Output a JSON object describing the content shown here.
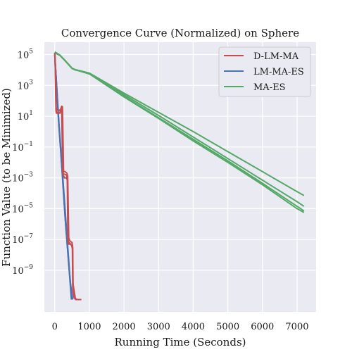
{
  "chart_data": {
    "type": "line",
    "title": "Convergence Curve (Normalized) on Sphere",
    "xlabel": "Running Time (Seconds)",
    "ylabel": "Function Value (to be Minimized)",
    "xlim": [
      -300,
      7550
    ],
    "ylim_log10": [
      -11.7,
      5.8
    ],
    "yscale": "log",
    "x_ticks": [
      0,
      1000,
      2000,
      3000,
      4000,
      5000,
      6000,
      7000
    ],
    "x_tick_labels": [
      "0",
      "1000",
      "2000",
      "3000",
      "4000",
      "5000",
      "6000",
      "7000"
    ],
    "y_ticks_log10": [
      5,
      3,
      1,
      -1,
      -3,
      -5,
      -7,
      -9
    ],
    "y_tick_labels": [
      "5",
      "3",
      "1",
      "−1",
      "−3",
      "−5",
      "−7",
      "−9"
    ],
    "grid": true,
    "legend_position": "top-right",
    "colors": {
      "plot_bg": "#eaeaf2",
      "grid": "#ffffff",
      "D-LM-MA": "#c44e52",
      "LM-MA-ES": "#4c72b0",
      "MA-ES": "#55a868"
    },
    "series": [
      {
        "name": "D-LM-MA",
        "runs": [
          [
            [
              0,
              5.1
            ],
            [
              10,
              4.9
            ],
            [
              35,
              1.3
            ],
            [
              60,
              1.25
            ],
            [
              120,
              1.25
            ],
            [
              150,
              1.2
            ],
            [
              175,
              1.5
            ],
            [
              200,
              1.5
            ],
            [
              230,
              -2.7
            ],
            [
              260,
              -2.75
            ],
            [
              330,
              -2.8
            ],
            [
              360,
              -3.0
            ],
            [
              380,
              -7.0
            ],
            [
              400,
              -7.3
            ],
            [
              470,
              -7.3
            ],
            [
              520,
              -7.5
            ],
            [
              530,
              -9.9
            ],
            [
              600,
              -10.9
            ],
            [
              770,
              -10.9
            ]
          ],
          [
            [
              0,
              5.0
            ],
            [
              20,
              4.0
            ],
            [
              40,
              1.5
            ],
            [
              80,
              1.4
            ],
            [
              140,
              1.4
            ],
            [
              160,
              1.3
            ],
            [
              190,
              1.6
            ],
            [
              215,
              1.6
            ],
            [
              245,
              -2.8
            ],
            [
              280,
              -3.0
            ],
            [
              340,
              -3.0
            ],
            [
              370,
              -3.2
            ],
            [
              395,
              -7.2
            ],
            [
              420,
              -7.2
            ],
            [
              490,
              -7.4
            ],
            [
              510,
              -7.6
            ],
            [
              520,
              -10.2
            ],
            [
              560,
              -10.8
            ],
            [
              620,
              -10.9
            ]
          ],
          [
            [
              0,
              5.05
            ],
            [
              25,
              3.5
            ],
            [
              45,
              1.2
            ],
            [
              90,
              1.2
            ],
            [
              150,
              1.2
            ],
            [
              170,
              1.3
            ],
            [
              205,
              1.65
            ],
            [
              225,
              1.6
            ],
            [
              255,
              -2.6
            ],
            [
              300,
              -2.6
            ],
            [
              350,
              -2.7
            ],
            [
              375,
              -2.9
            ],
            [
              405,
              -6.9
            ],
            [
              440,
              -7.1
            ],
            [
              500,
              -7.2
            ],
            [
              515,
              -7.4
            ],
            [
              525,
              -9.8
            ],
            [
              570,
              -10.8
            ],
            [
              650,
              -10.9
            ]
          ]
        ]
      },
      {
        "name": "LM-MA-ES",
        "runs": [
          [
            [
              0,
              5.1
            ],
            [
              100,
              1.0
            ],
            [
              200,
              -2.2
            ],
            [
              300,
              -5.6
            ],
            [
              400,
              -8.5
            ],
            [
              480,
              -10.9
            ]
          ],
          [
            [
              0,
              5.05
            ],
            [
              110,
              0.8
            ],
            [
              220,
              -2.8
            ],
            [
              320,
              -6.2
            ],
            [
              420,
              -9.0
            ],
            [
              500,
              -10.9
            ]
          ],
          [
            [
              0,
              5.0
            ],
            [
              120,
              0.6
            ],
            [
              240,
              -3.2
            ],
            [
              360,
              -7.0
            ],
            [
              450,
              -9.8
            ],
            [
              520,
              -10.9
            ]
          ]
        ]
      },
      {
        "name": "MA-ES",
        "runs": [
          [
            [
              0,
              5.15
            ],
            [
              150,
              4.95
            ],
            [
              300,
              4.6
            ],
            [
              400,
              4.35
            ],
            [
              500,
              4.1
            ],
            [
              600,
              4.0
            ],
            [
              700,
              3.95
            ],
            [
              1000,
              3.75
            ],
            [
              2000,
              2.4
            ],
            [
              3000,
              1.05
            ],
            [
              4000,
              -0.35
            ],
            [
              5000,
              -1.75
            ],
            [
              6000,
              -3.15
            ],
            [
              7000,
              -4.55
            ],
            [
              7200,
              -4.85
            ]
          ],
          [
            [
              0,
              5.12
            ],
            [
              150,
              4.95
            ],
            [
              300,
              4.6
            ],
            [
              400,
              4.35
            ],
            [
              500,
              4.1
            ],
            [
              600,
              4.0
            ],
            [
              700,
              3.95
            ],
            [
              1000,
              3.75
            ],
            [
              2000,
              2.25
            ],
            [
              3000,
              0.85
            ],
            [
              4000,
              -0.6
            ],
            [
              5000,
              -2.0
            ],
            [
              6000,
              -3.45
            ],
            [
              7000,
              -5.0
            ],
            [
              7200,
              -5.25
            ]
          ],
          [
            [
              0,
              5.1
            ],
            [
              150,
              4.95
            ],
            [
              300,
              4.6
            ],
            [
              400,
              4.35
            ],
            [
              500,
              4.1
            ],
            [
              600,
              4.0
            ],
            [
              700,
              3.95
            ],
            [
              1000,
              3.75
            ],
            [
              2000,
              2.3
            ],
            [
              3000,
              0.9
            ],
            [
              4000,
              -0.5
            ],
            [
              5000,
              -1.9
            ],
            [
              6000,
              -3.35
            ],
            [
              7000,
              -4.85
            ],
            [
              7200,
              -5.15
            ]
          ],
          [
            [
              0,
              5.18
            ],
            [
              150,
              4.97
            ],
            [
              300,
              4.62
            ],
            [
              400,
              4.37
            ],
            [
              500,
              4.12
            ],
            [
              600,
              4.02
            ],
            [
              700,
              3.97
            ],
            [
              1000,
              3.8
            ],
            [
              2000,
              2.5
            ],
            [
              3000,
              1.25
            ],
            [
              4000,
              0.0
            ],
            [
              5000,
              -1.3
            ],
            [
              6000,
              -2.6
            ],
            [
              7000,
              -3.9
            ],
            [
              7200,
              -4.15
            ]
          ]
        ]
      }
    ]
  }
}
